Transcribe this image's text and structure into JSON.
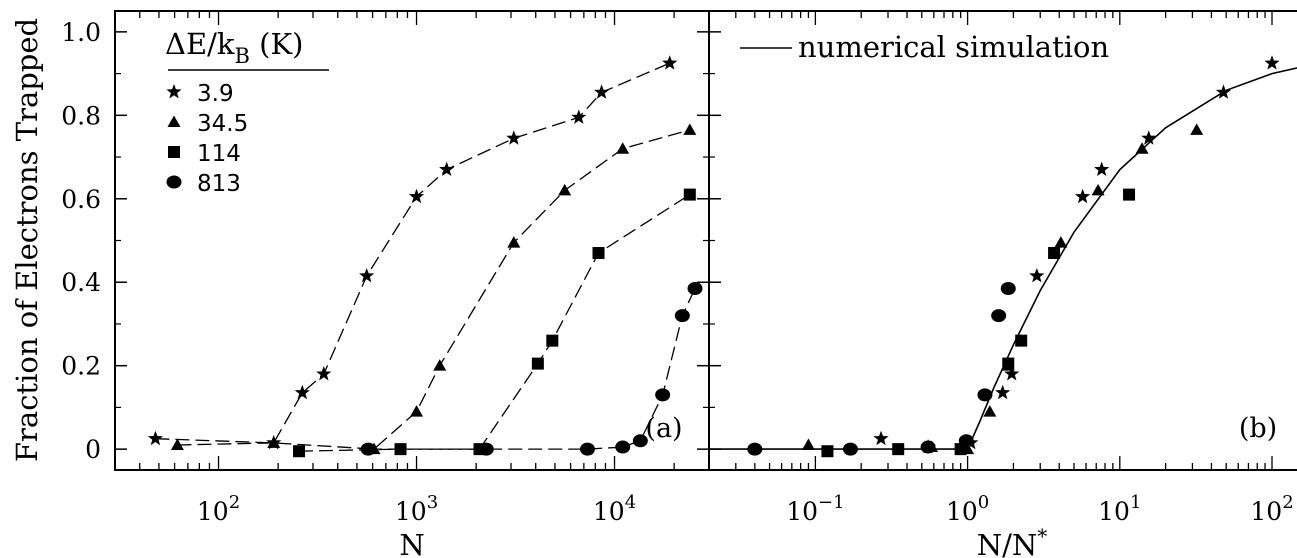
{
  "chart_data": {
    "type": "scatter",
    "ylabel": "Fraction of Electrons Trapped",
    "panels": [
      {
        "label": "(a)",
        "xlabel": "N",
        "xscale": "log",
        "xlim": [
          30,
          30000
        ],
        "ylim": [
          -0.05,
          1.05
        ],
        "x_ticks": [
          {
            "value": 100,
            "base": "10",
            "exp": "2"
          },
          {
            "value": 1000,
            "base": "10",
            "exp": "3"
          },
          {
            "value": 10000,
            "base": "10",
            "exp": "4"
          }
        ],
        "y_ticks": [
          "0",
          "0.2",
          "0.4",
          "0.6",
          "0.8",
          "1.0"
        ],
        "legend": {
          "title_main": "ΔE/k",
          "title_sub": "B",
          "title_unit": " (K)",
          "position": "top-left",
          "entries": [
            "3.9",
            "34.5",
            "114",
            "813"
          ]
        },
        "series": [
          {
            "name": "3.9",
            "marker": "star",
            "x": [
              48,
              190,
              265,
              340,
              560,
              1000,
              1420,
              3100,
              6600,
              8600,
              19000
            ],
            "y": [
              0.025,
              0.015,
              0.135,
              0.18,
              0.415,
              0.605,
              0.67,
              0.745,
              0.795,
              0.855,
              0.925
            ]
          },
          {
            "name": "34.5",
            "marker": "triangle",
            "x": [
              62,
              190,
              610,
              1000,
              1310,
              3100,
              5600,
              11000,
              24000
            ],
            "y": [
              0.01,
              0.015,
              0.0,
              0.09,
              0.2,
              0.495,
              0.62,
              0.72,
              0.765
            ]
          },
          {
            "name": "114",
            "marker": "square",
            "x": [
              255,
              830,
              2080,
              4100,
              4850,
              8300,
              24000
            ],
            "y": [
              -0.005,
              0.0,
              0.0,
              0.205,
              0.26,
              0.47,
              0.61
            ]
          },
          {
            "name": "813",
            "marker": "circle",
            "x": [
              570,
              2250,
              7300,
              11000,
              13500,
              17500,
              22000,
              25500
            ],
            "y": [
              0.0,
              0.0,
              0.0,
              0.005,
              0.02,
              0.13,
              0.32,
              0.385
            ]
          }
        ]
      },
      {
        "label": "(b)",
        "xlabel": "N/N",
        "xlabel_sup": "*",
        "xscale": "log",
        "xlim": [
          0.02,
          175
        ],
        "ylim": [
          -0.05,
          1.05
        ],
        "x_ticks": [
          {
            "value": 0.1,
            "base": "10",
            "exp": "−1"
          },
          {
            "value": 1,
            "base": "10",
            "exp": "0"
          },
          {
            "value": 10,
            "base": "10",
            "exp": "1"
          },
          {
            "value": 100,
            "base": "10",
            "exp": "2"
          }
        ],
        "legend": {
          "line_label": "numerical simulation",
          "position": "top-left"
        },
        "curve": {
          "name": "numerical simulation",
          "x": [
            0.02,
            0.1,
            0.5,
            1.0,
            1.2,
            1.5,
            2.0,
            3.0,
            5.0,
            10.0,
            20.0,
            50.0,
            100.0,
            175.0
          ],
          "y": [
            0.0,
            0.0,
            0.0,
            0.0,
            0.065,
            0.15,
            0.25,
            0.38,
            0.52,
            0.67,
            0.77,
            0.86,
            0.9,
            0.92
          ]
        },
        "series": [
          {
            "name": "3.9",
            "marker": "star",
            "x": [
              0.27,
              0.55,
              1.05,
              1.7,
              1.95,
              2.85,
              5.7,
              7.6,
              15.5,
              48,
              100
            ],
            "y": [
              0.025,
              0.005,
              0.015,
              0.135,
              0.18,
              0.415,
              0.605,
              0.67,
              0.745,
              0.855,
              0.925
            ]
          },
          {
            "name": "34.5",
            "marker": "triangle",
            "x": [
              0.09,
              0.58,
              1.0,
              1.4,
              1.85,
              4.1,
              7.2,
              14,
              32
            ],
            "y": [
              0.01,
              0.005,
              0.0,
              0.09,
              0.2,
              0.495,
              0.62,
              0.72,
              0.765
            ]
          },
          {
            "name": "114",
            "marker": "square",
            "x": [
              0.12,
              0.35,
              0.9,
              1.85,
              2.25,
              3.7,
              11.5
            ],
            "y": [
              -0.005,
              0.0,
              0.0,
              0.205,
              0.26,
              0.47,
              0.61
            ]
          },
          {
            "name": "813",
            "marker": "circle",
            "x": [
              0.04,
              0.17,
              0.55,
              0.98,
              1.3,
              1.6,
              1.85
            ],
            "y": [
              0.0,
              0.0,
              0.005,
              0.02,
              0.13,
              0.32,
              0.385
            ]
          }
        ]
      }
    ]
  }
}
